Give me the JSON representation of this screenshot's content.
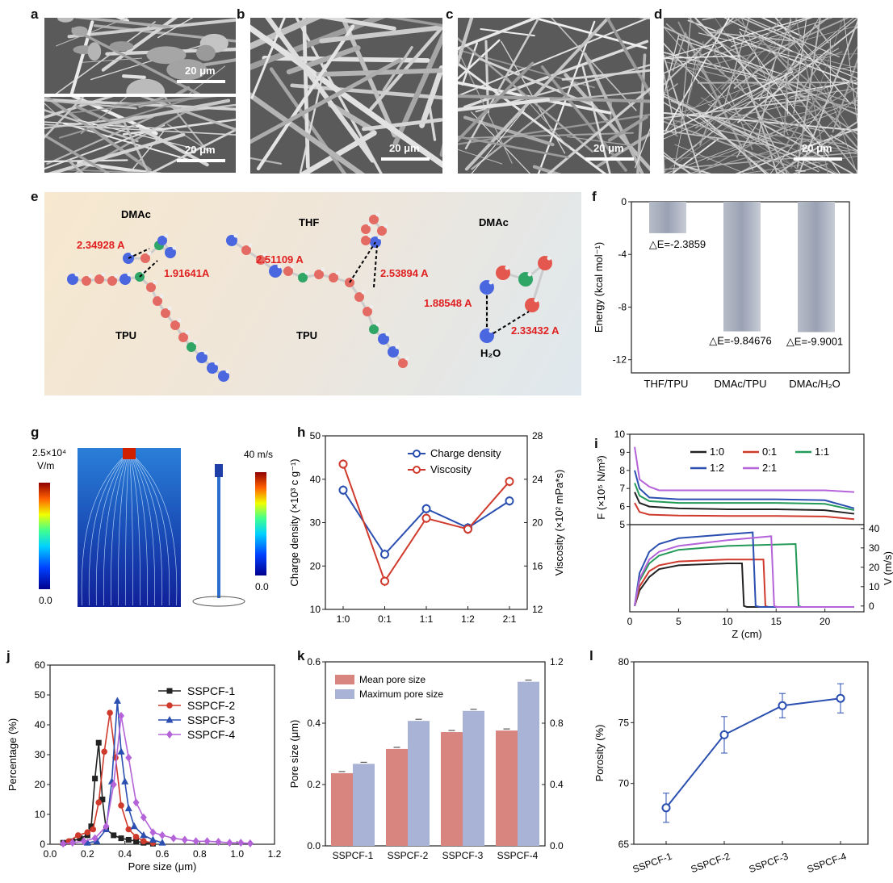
{
  "panels": {
    "a": "a",
    "b": "b",
    "c": "c",
    "d": "d",
    "e": "e",
    "f": "f",
    "g": "g",
    "h": "h",
    "i": "i",
    "j": "j",
    "k": "k",
    "l": "l"
  },
  "sem": {
    "scale": "20 μm"
  },
  "panel_e": {
    "mol1_title": "DMAc",
    "mol1_d1": "2.34928 A",
    "mol1_d2": "1.91641A",
    "mol1_sub": "TPU",
    "mol2_title": "THF",
    "mol2_d1": "2.51109 A",
    "mol2_d2": "2.53894 A",
    "mol2_sub": "TPU",
    "mol3_title": "DMAc",
    "mol3_d1": "1.88548 A",
    "mol3_d2": "2.33432 A",
    "mol3_sub": "H₂O"
  },
  "panel_g": {
    "field_max": "2.5×10⁴",
    "field_unit": "V/m",
    "field_min": "0.0",
    "vel_max": "40 m/s",
    "vel_min": "0.0"
  },
  "colors": {
    "red": "#d03a2c",
    "blue": "#2a4fb0",
    "green": "#239a57",
    "purple": "#b463d8",
    "black": "#222222",
    "pink": "#d9857f",
    "lavender": "#a9b3d6"
  },
  "chart_data": [
    {
      "id": "f",
      "type": "bar",
      "categories": [
        "THF/TPU",
        "DMAc/TPU",
        "DMAc/H₂O"
      ],
      "values": [
        -2.3859,
        -9.84676,
        -9.9001
      ],
      "labels": [
        "△E=-2.3859",
        "△E=-9.84676",
        "△E=-9.9001"
      ],
      "ylabel": "Energy (kcal mol⁻¹)",
      "ylim": [
        -13,
        0
      ],
      "yticks": [
        0,
        -4,
        -8,
        -12
      ]
    },
    {
      "id": "h",
      "type": "line",
      "categories": [
        "1:0",
        "0:1",
        "1:1",
        "1:2",
        "2:1"
      ],
      "series": [
        {
          "name": "Charge density",
          "axis": "left",
          "values": [
            37.5,
            22.7,
            33.2,
            28.8,
            35
          ]
        },
        {
          "name": "Viscosity",
          "axis": "right",
          "values": [
            25.4,
            14.6,
            20.4,
            19.4,
            23.8
          ]
        }
      ],
      "ylabel": "Charge density (×10³ c g⁻¹)",
      "y2label": "Viscosity (×10² mPa*s)",
      "ylim": [
        10,
        50
      ],
      "y2lim": [
        12,
        28
      ],
      "yticks": [
        10,
        20,
        30,
        40,
        50
      ],
      "y2ticks": [
        12,
        16,
        20,
        24,
        28
      ]
    },
    {
      "id": "i",
      "type": "line",
      "xlabel": "Z (cm)",
      "xlim": [
        0,
        24
      ],
      "xticks": [
        0,
        5,
        10,
        15,
        20
      ],
      "top": {
        "ylabel": "F (×10⁵ N/m³)",
        "ylim": [
          5,
          10
        ],
        "yticks": [
          5,
          6,
          7,
          8,
          9,
          10
        ],
        "series": [
          {
            "name": "1:0",
            "x": [
              0.5,
              1,
              2,
              5,
              10,
              15,
              20,
              23
            ],
            "y": [
              6.8,
              6.2,
              6.0,
              5.9,
              5.85,
              5.85,
              5.8,
              5.6
            ]
          },
          {
            "name": "0:1",
            "x": [
              0.5,
              1,
              2,
              5,
              10,
              15,
              20,
              23
            ],
            "y": [
              6.2,
              5.7,
              5.55,
              5.5,
              5.48,
              5.48,
              5.45,
              5.3
            ]
          },
          {
            "name": "1:1",
            "x": [
              0.5,
              1,
              2,
              5,
              10,
              15,
              20,
              23
            ],
            "y": [
              7.3,
              6.6,
              6.3,
              6.2,
              6.2,
              6.2,
              6.15,
              5.8
            ]
          },
          {
            "name": "1:2",
            "x": [
              0.5,
              1,
              2,
              5,
              10,
              15,
              20,
              23
            ],
            "y": [
              8.0,
              7.0,
              6.5,
              6.4,
              6.4,
              6.4,
              6.35,
              5.9
            ]
          },
          {
            "name": "2:1",
            "x": [
              0.5,
              1,
              2,
              3,
              5,
              10,
              15,
              20,
              23
            ],
            "y": [
              9.3,
              7.5,
              7.1,
              6.9,
              6.9,
              6.9,
              6.9,
              6.9,
              6.8
            ]
          }
        ]
      },
      "bottom": {
        "ylabel": "V (m/s)",
        "ylim": [
          -3,
          42
        ],
        "yticks": [
          0,
          10,
          20,
          30,
          40
        ],
        "series": [
          {
            "name": "1:0",
            "x": [
              0.5,
              1,
              2,
              3,
              5,
              10,
              11.5,
              11.7,
              12,
              23
            ],
            "y": [
              0,
              8,
              15,
              19,
              21,
              22,
              22,
              0,
              -0.5,
              -0.5
            ]
          },
          {
            "name": "0:1",
            "x": [
              0.5,
              1,
              2,
              3,
              5,
              10,
              13.7,
              13.9,
              14.2,
              23
            ],
            "y": [
              0,
              10,
              18,
              21,
              23,
              24,
              24,
              0,
              -0.5,
              -0.5
            ]
          },
          {
            "name": "1:1",
            "x": [
              0.5,
              1,
              2,
              3,
              5,
              10,
              17.0,
              17.3,
              17.6,
              23
            ],
            "y": [
              0,
              13,
              22,
              26,
              29,
              31,
              32,
              0,
              -0.5,
              -0.5
            ]
          },
          {
            "name": "1:2",
            "x": [
              0.5,
              1,
              2,
              3,
              5,
              10,
              12.6,
              12.9,
              13.3,
              23
            ],
            "y": [
              0,
              17,
              28,
              32,
              35,
              37,
              38,
              0,
              -0.5,
              -0.5
            ]
          },
          {
            "name": "2:1",
            "x": [
              0.5,
              1,
              2,
              3,
              5,
              10,
              14.5,
              14.8,
              15.1,
              23
            ],
            "y": [
              0,
              14,
              24,
              28,
              31,
              34,
              36,
              0,
              -0.5,
              -0.5
            ]
          }
        ]
      }
    },
    {
      "id": "j",
      "type": "line",
      "xlabel": "Pore size (μm)",
      "ylabel": "Percentage (%)",
      "xlim": [
        0,
        1.2
      ],
      "ylim": [
        0,
        60
      ],
      "xticks": [
        0.0,
        0.2,
        0.4,
        0.6,
        0.8,
        1.0,
        1.2
      ],
      "yticks": [
        0,
        10,
        20,
        30,
        40,
        50,
        60
      ],
      "series": [
        {
          "name": "SSPCF-1",
          "x": [
            0.07,
            0.12,
            0.16,
            0.2,
            0.22,
            0.24,
            0.26,
            0.28,
            0.3,
            0.34,
            0.38,
            0.42,
            0.46,
            0.5,
            0.55
          ],
          "y": [
            0.5,
            1,
            2,
            3,
            6,
            22,
            34,
            15,
            5,
            3,
            2,
            1.5,
            1,
            0.5,
            0.2
          ]
        },
        {
          "name": "SSPCF-2",
          "x": [
            0.1,
            0.15,
            0.2,
            0.23,
            0.26,
            0.29,
            0.32,
            0.35,
            0.38,
            0.42,
            0.46,
            0.5,
            0.55
          ],
          "y": [
            1,
            3,
            4,
            5,
            14,
            31,
            44,
            29,
            13,
            5,
            2.5,
            1,
            0.5
          ]
        },
        {
          "name": "SSPCF-3",
          "x": [
            0.2,
            0.25,
            0.3,
            0.33,
            0.36,
            0.38,
            0.4,
            0.42,
            0.45,
            0.5,
            0.55,
            0.6
          ],
          "y": [
            0.5,
            1,
            5,
            21,
            48,
            31,
            21,
            12,
            6,
            3,
            1.5,
            0.5
          ]
        },
        {
          "name": "SSPCF-4",
          "x": [
            0.07,
            0.12,
            0.18,
            0.24,
            0.3,
            0.34,
            0.38,
            0.42,
            0.46,
            0.5,
            0.55,
            0.6,
            0.66,
            0.72,
            0.78,
            0.84,
            0.9,
            0.96,
            1.02,
            1.07
          ],
          "y": [
            0.2,
            0.5,
            1,
            2,
            6,
            20,
            43,
            29,
            14,
            9,
            4,
            3,
            2,
            1.5,
            1,
            1,
            0.8,
            0.5,
            0.5,
            0.3
          ]
        }
      ]
    },
    {
      "id": "k",
      "type": "bar",
      "categories": [
        "SSPCF-1",
        "SSPCF-2",
        "SSPCF-3",
        "SSPCF-4"
      ],
      "series": [
        {
          "name": "Mean pore size",
          "axis": "left",
          "values": [
            0.237,
            0.316,
            0.371,
            0.376
          ]
        },
        {
          "name": "Maximum pore size",
          "axis": "right",
          "values": [
            0.535,
            0.815,
            0.88,
            1.07
          ]
        }
      ],
      "ylabel": "Pore size (μm)",
      "ylim": [
        0,
        0.6
      ],
      "y2lim": [
        0,
        1.2
      ],
      "yticks": [
        0.0,
        0.2,
        0.4,
        0.6
      ],
      "y2ticks": [
        0.0,
        0.4,
        0.8,
        1.2
      ]
    },
    {
      "id": "l",
      "type": "line",
      "categories": [
        "SSPCF-1",
        "SSPCF-2",
        "SSPCF-3",
        "SSPCF-4"
      ],
      "values": [
        68,
        74,
        76.4,
        77
      ],
      "errors": [
        1.2,
        1.5,
        1.0,
        1.2
      ],
      "ylabel": "Porosity (%)",
      "ylim": [
        65,
        80
      ],
      "yticks": [
        65,
        70,
        75,
        80
      ]
    }
  ]
}
